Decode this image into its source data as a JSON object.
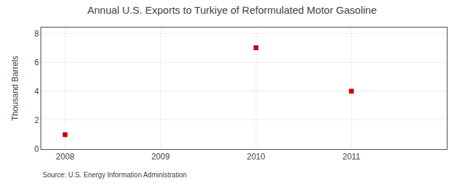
{
  "chart_data": {
    "type": "scatter",
    "title": "Annual U.S. Exports to Turkiye of Reformulated Motor Gasoline",
    "ylabel": "Thousand Barrels",
    "annotations": [
      "Source: U.S. Energy Information Administration"
    ],
    "x": [
      2008,
      2010,
      2011
    ],
    "values": [
      1,
      7,
      4
    ],
    "color": "#cc0000",
    "marker": "square",
    "xlim": [
      2007.75,
      2012.0
    ],
    "ylim": [
      0,
      8.4
    ],
    "xticks": [
      2008,
      2009,
      2010,
      2011
    ],
    "yticks": [
      0,
      2,
      4,
      6,
      8
    ],
    "grid": true
  }
}
